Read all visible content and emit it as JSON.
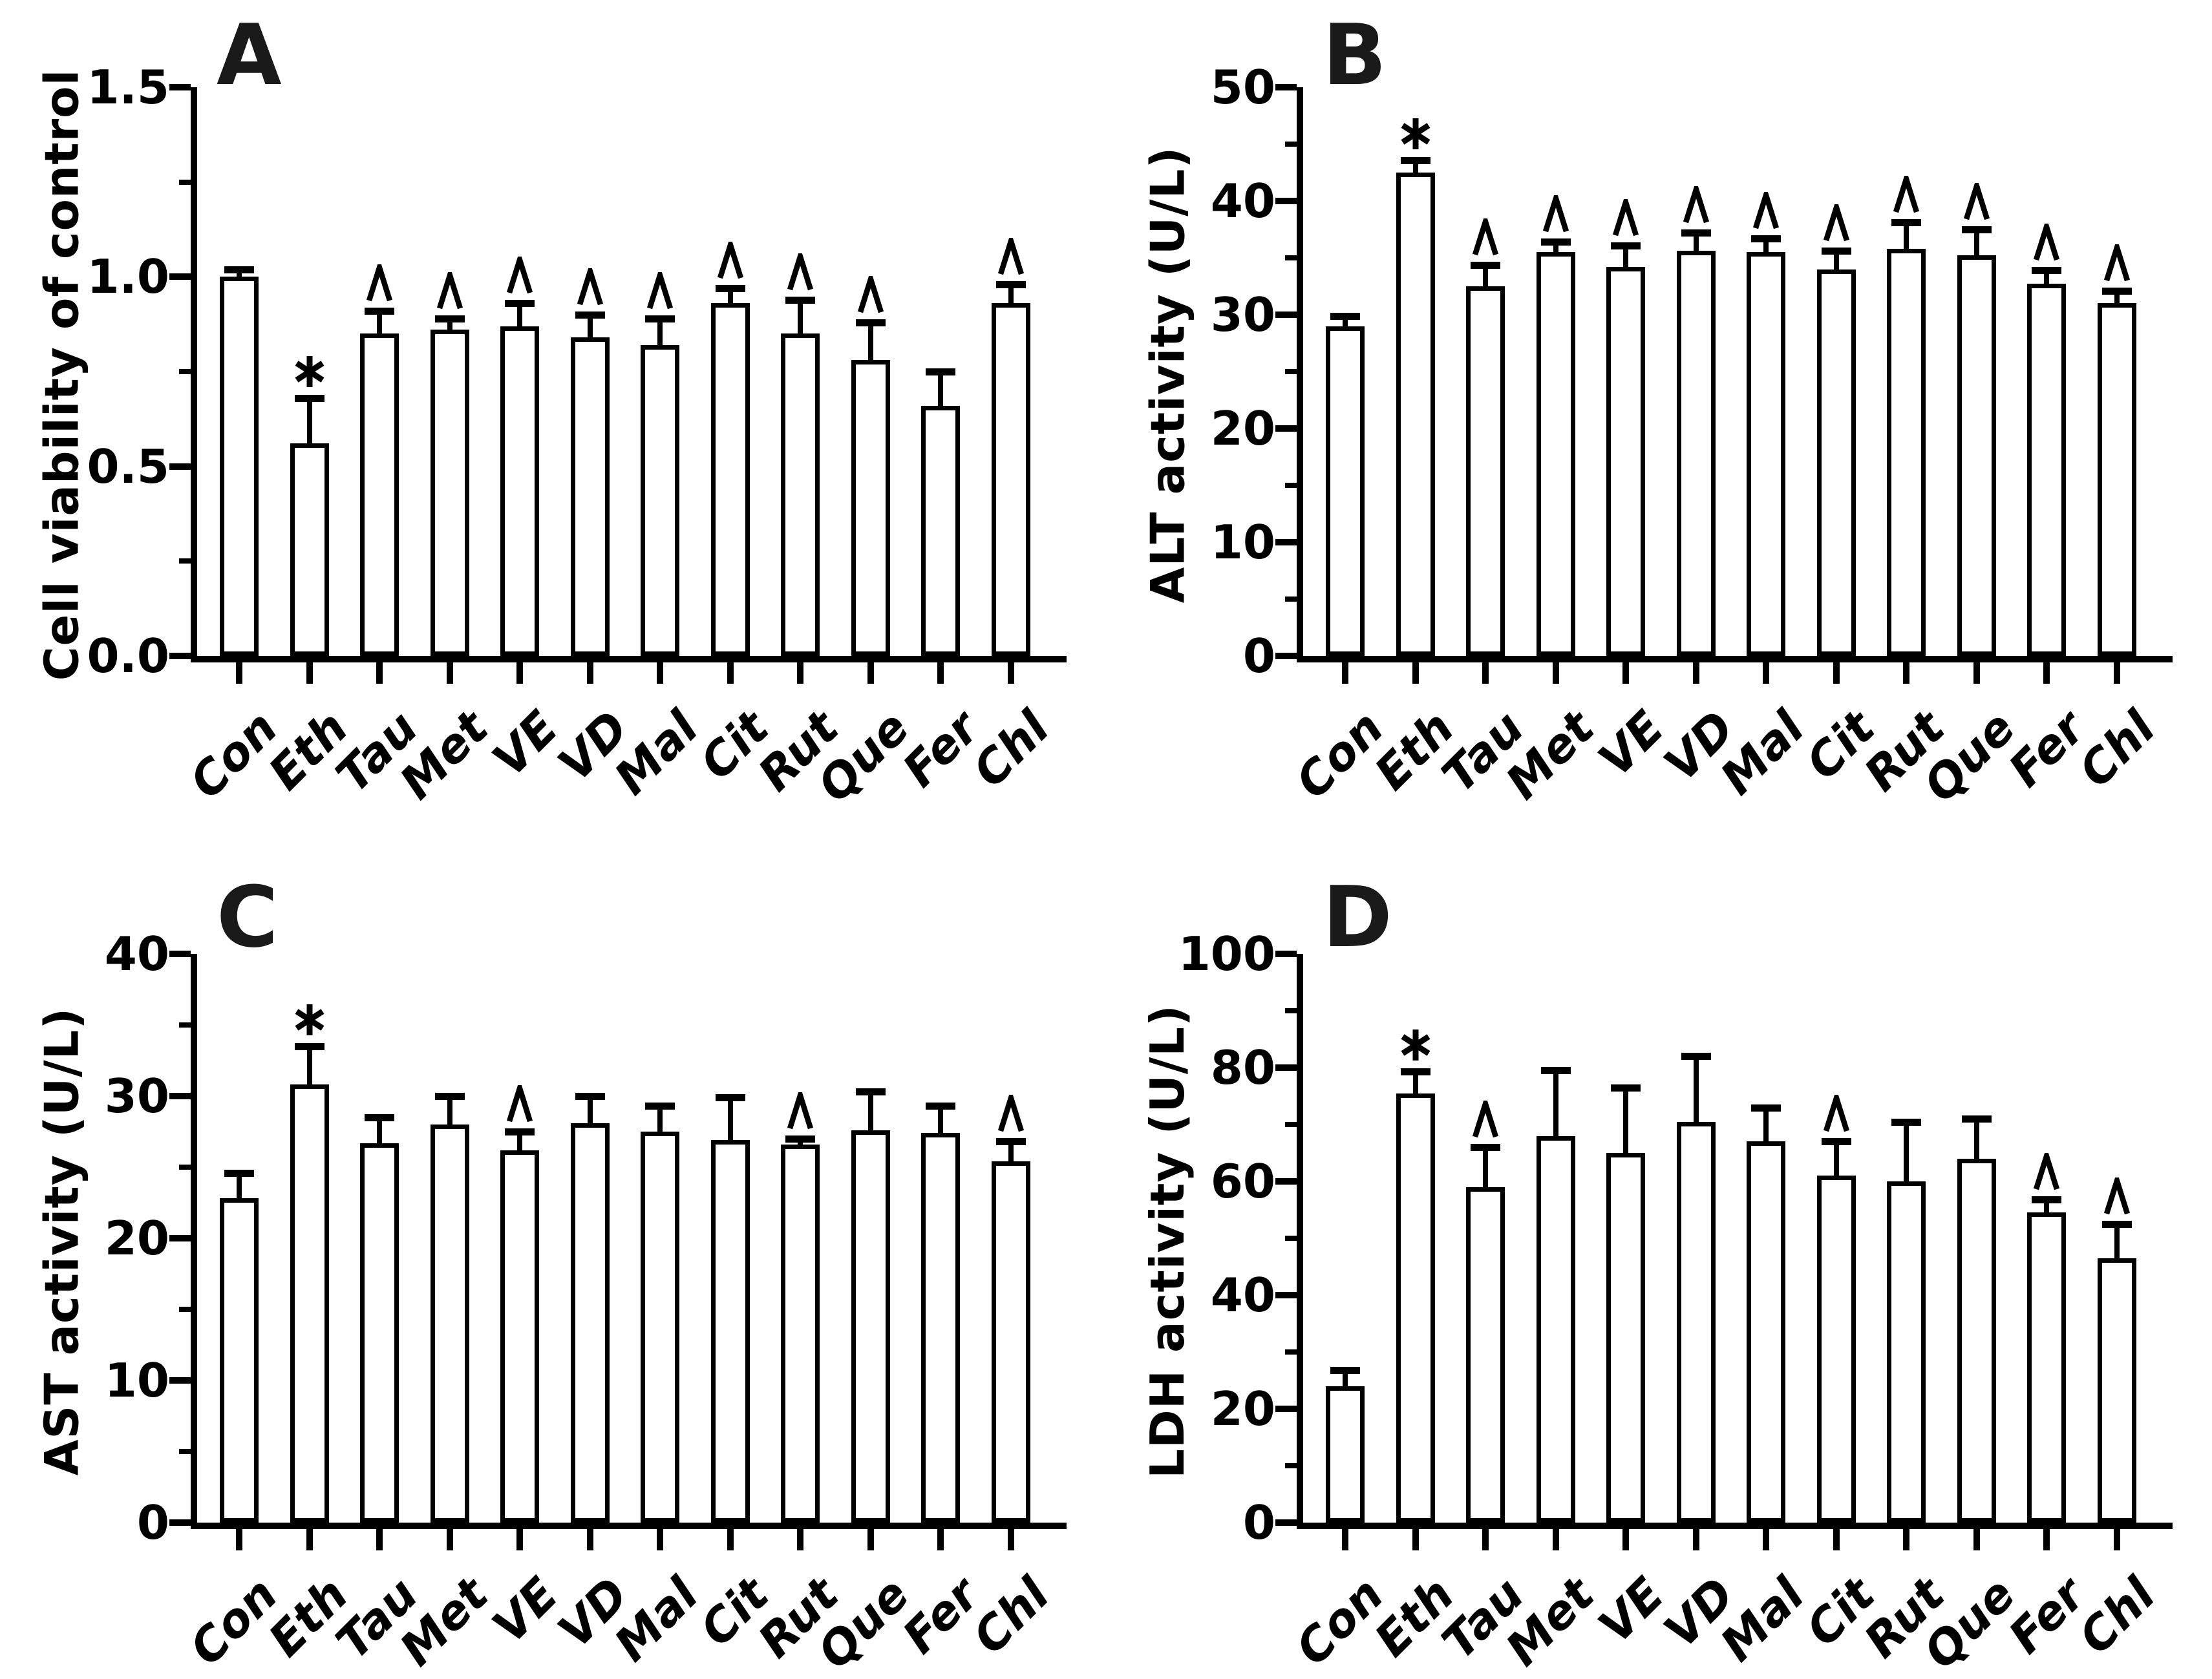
{
  "figure": {
    "background_color": "#ffffff",
    "ink_color": "#000000",
    "panel_count": 4,
    "marker_star": "*",
    "marker_caret": "^"
  },
  "chart_data": [
    {
      "type": "bar",
      "panel_label": "A",
      "title": "",
      "xlabel": "",
      "ylabel": "Cell viability of control",
      "ylim": [
        0,
        1.5
      ],
      "ytick_step": 0.5,
      "yminor_step": 0.25,
      "ytick_decimals": 1,
      "grid": false,
      "legend": null,
      "bar_fill": "#ffffff",
      "edge_color": "#000000",
      "error_bars": "upper-only",
      "xtick_rotation_deg": -45,
      "categories": [
        "Con",
        "Eth",
        "Tau",
        "Met",
        "VE",
        "VD",
        "Mal",
        "Cit",
        "Rut",
        "Que",
        "Fer",
        "Chl"
      ],
      "values": [
        1.0,
        0.56,
        0.85,
        0.86,
        0.87,
        0.84,
        0.82,
        0.93,
        0.85,
        0.78,
        0.66,
        0.93
      ],
      "errors": [
        0.02,
        0.12,
        0.06,
        0.03,
        0.06,
        0.06,
        0.07,
        0.04,
        0.09,
        0.1,
        0.09,
        0.05
      ],
      "annotations": [
        "",
        "*",
        "^",
        "^",
        "^",
        "^",
        "^",
        "^",
        "^",
        "^",
        "",
        "^"
      ]
    },
    {
      "type": "bar",
      "panel_label": "B",
      "title": "",
      "xlabel": "",
      "ylabel": "ALT activity (U/L)",
      "ylim": [
        0,
        50
      ],
      "ytick_step": 10,
      "yminor_step": 5,
      "ytick_decimals": 0,
      "grid": false,
      "legend": null,
      "bar_fill": "#ffffff",
      "edge_color": "#000000",
      "error_bars": "upper-only",
      "xtick_rotation_deg": -45,
      "categories": [
        "Con",
        "Eth",
        "Tau",
        "Met",
        "VE",
        "VD",
        "Mal",
        "Cit",
        "Rut",
        "Que",
        "Fer",
        "Chl"
      ],
      "values": [
        29,
        42.5,
        32.5,
        35.5,
        34.2,
        35.6,
        35.5,
        34,
        35.8,
        35.2,
        32.7,
        31
      ],
      "errors": [
        0.9,
        1.1,
        1.9,
        0.9,
        1.9,
        1.6,
        1.2,
        1.6,
        2.3,
        2.3,
        1.2,
        1.1
      ],
      "annotations": [
        "",
        "*",
        "^",
        "^",
        "^",
        "^",
        "^",
        "^",
        "^",
        "^",
        "^",
        "^"
      ]
    },
    {
      "type": "bar",
      "panel_label": "C",
      "title": "",
      "xlabel": "",
      "ylabel": "AST activity (U/L)",
      "ylim": [
        0,
        40
      ],
      "ytick_step": 10,
      "yminor_step": 5,
      "ytick_decimals": 0,
      "grid": false,
      "legend": null,
      "bar_fill": "#ffffff",
      "edge_color": "#000000",
      "error_bars": "upper-only",
      "xtick_rotation_deg": -45,
      "categories": [
        "Con",
        "Eth",
        "Tau",
        "Met",
        "VE",
        "VD",
        "Mal",
        "Cit",
        "Rut",
        "Que",
        "Fer",
        "Chl"
      ],
      "values": [
        22.8,
        30.8,
        26.7,
        28,
        26.2,
        28.1,
        27.5,
        26.9,
        26.6,
        27.6,
        27.4,
        25.4
      ],
      "errors": [
        1.8,
        2.7,
        1.8,
        2,
        1.3,
        1.9,
        1.8,
        3,
        0.4,
        2.7,
        1.9,
        1.4
      ],
      "annotations": [
        "",
        "*",
        "",
        "",
        "^",
        "",
        "",
        "",
        "^",
        "",
        "",
        "^"
      ]
    },
    {
      "type": "bar",
      "panel_label": "D",
      "title": "",
      "xlabel": "",
      "ylabel": "LDH activity (U/L)",
      "ylim": [
        0,
        100
      ],
      "ytick_step": 20,
      "yminor_step": 10,
      "ytick_decimals": 0,
      "grid": false,
      "legend": null,
      "bar_fill": "#ffffff",
      "edge_color": "#000000",
      "error_bars": "upper-only",
      "xtick_rotation_deg": -45,
      "categories": [
        "Con",
        "Eth",
        "Tau",
        "Met",
        "VE",
        "VD",
        "Mal",
        "Cit",
        "Rut",
        "Que",
        "Fer",
        "Chl"
      ],
      "values": [
        24,
        75.5,
        59,
        68,
        65,
        70.5,
        67,
        61,
        60,
        64,
        54.5,
        46.5
      ],
      "errors": [
        2.8,
        3.8,
        7,
        11.5,
        11.5,
        11.5,
        6,
        6,
        10.5,
        7,
        2.3,
        6
      ],
      "annotations": [
        "",
        "*",
        "^",
        "",
        "",
        "",
        "",
        "^",
        "",
        "",
        "^",
        "^"
      ]
    }
  ]
}
